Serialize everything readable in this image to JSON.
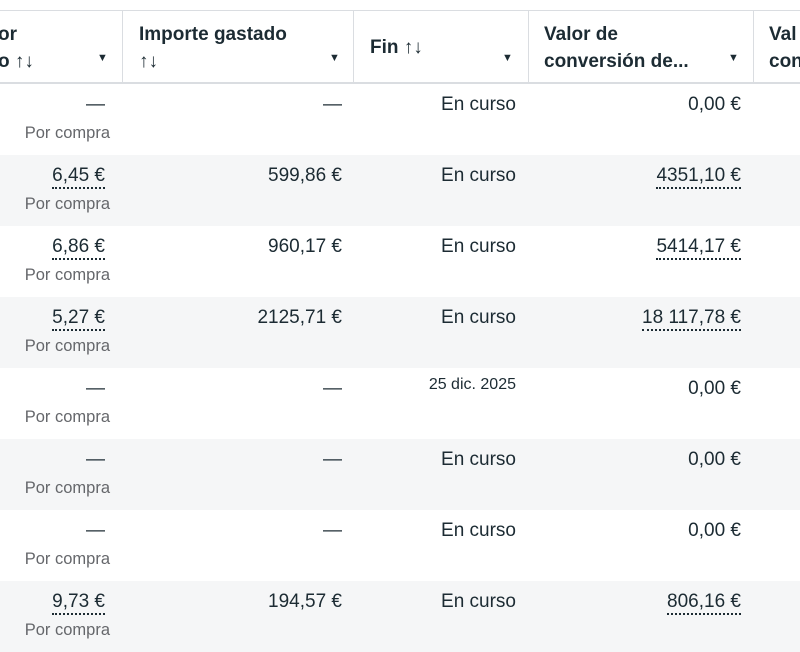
{
  "columns": [
    {
      "label": "or\no ↑↓"
    },
    {
      "label": "Importe gastado\n↑↓"
    },
    {
      "label": "Fin ↑↓"
    },
    {
      "label": "Valor de\nconversión de..."
    },
    {
      "label": "Val\ncon"
    }
  ],
  "rows": [
    {
      "cost": "—",
      "cost_sub": "Por compra",
      "spent": "—",
      "end": "En curso",
      "value": "0,00 €",
      "cost_link": false,
      "value_link": false
    },
    {
      "cost": "6,45 €",
      "cost_sub": "Por compra",
      "spent": "599,86 €",
      "end": "En curso",
      "value": "4351,10 €",
      "cost_link": true,
      "value_link": true
    },
    {
      "cost": "6,86 €",
      "cost_sub": "Por compra",
      "spent": "960,17 €",
      "end": "En curso",
      "value": "5414,17 €",
      "cost_link": true,
      "value_link": true
    },
    {
      "cost": "5,27 €",
      "cost_sub": "Por compra",
      "spent": "2125,71 €",
      "end": "En curso",
      "value": "18 117,78 €",
      "cost_link": true,
      "value_link": true
    },
    {
      "cost": "—",
      "cost_sub": "Por compra",
      "spent": "—",
      "end": "25 dic. 2025",
      "value": "0,00 €",
      "cost_link": false,
      "value_link": false
    },
    {
      "cost": "—",
      "cost_sub": "Por compra",
      "spent": "—",
      "end": "En curso",
      "value": "0,00 €",
      "cost_link": false,
      "value_link": false
    },
    {
      "cost": "—",
      "cost_sub": "Por compra",
      "spent": "—",
      "end": "En curso",
      "value": "0,00 €",
      "cost_link": false,
      "value_link": false
    },
    {
      "cost": "9,73 €",
      "cost_sub": "Por compra",
      "spent": "194,57 €",
      "end": "En curso",
      "value": "806,16 €",
      "cost_link": true,
      "value_link": true
    }
  ]
}
